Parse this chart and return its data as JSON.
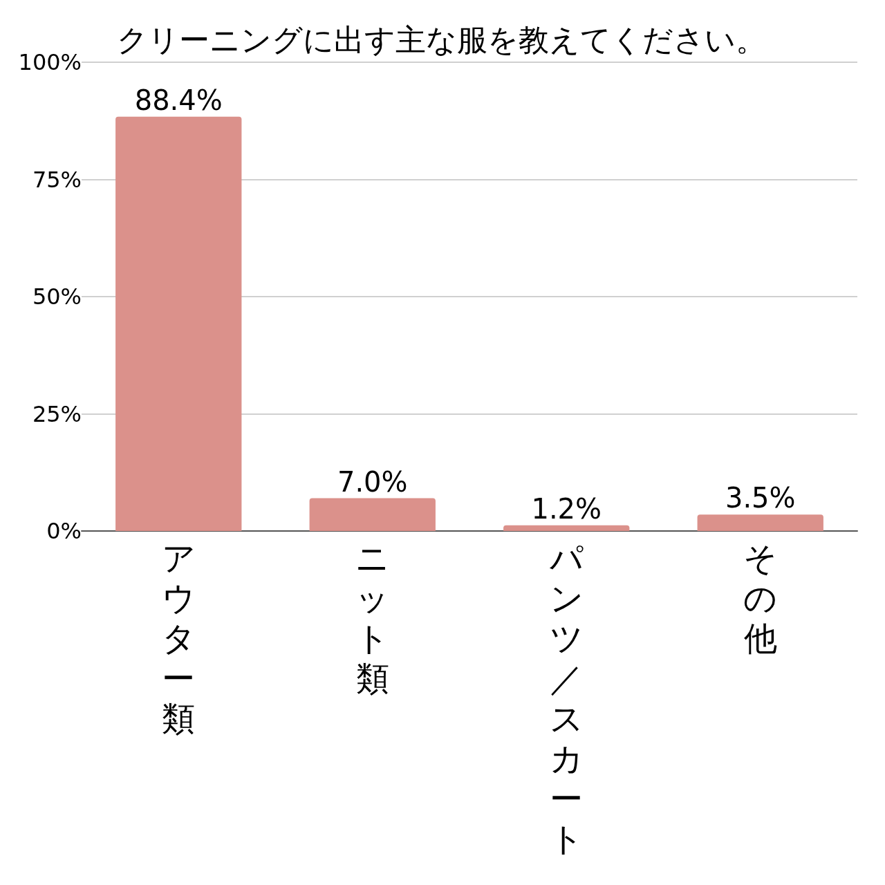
{
  "chart_data": {
    "type": "bar",
    "title": "クリーニングに出す主な服を教えてください。",
    "categories": [
      "アウター類",
      "ニット類",
      "パンツ／スカート",
      "その他"
    ],
    "values": [
      88.4,
      7.0,
      1.2,
      3.5
    ],
    "value_labels": [
      "88.4%",
      "7.0%",
      "1.2%",
      "3.5%"
    ],
    "color": "#db918b",
    "ylim": [
      0,
      100
    ],
    "yticks": [
      {
        "value": 0,
        "label": "0%"
      },
      {
        "value": 25,
        "label": "25%"
      },
      {
        "value": 50,
        "label": "50%"
      },
      {
        "value": 75,
        "label": "75%"
      },
      {
        "value": 100,
        "label": "100%"
      }
    ],
    "grid": "y"
  }
}
